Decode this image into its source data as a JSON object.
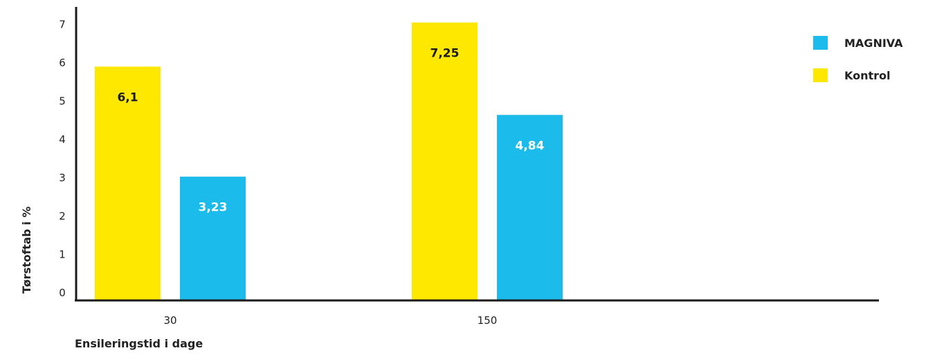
{
  "chart_data": {
    "type": "bar",
    "categories": [
      "30",
      "150"
    ],
    "series": [
      {
        "name": "Kontrol",
        "values": [
          6.1,
          7.25
        ],
        "labels": [
          "6,1",
          "7,25"
        ],
        "color": "#FFE800",
        "label_color": "#1a1a1a"
      },
      {
        "name": "MAGNIVA",
        "values": [
          3.23,
          4.84
        ],
        "labels": [
          "3,23",
          "4,84"
        ],
        "color": "#1BBBEC",
        "label_color": "#ffffff"
      }
    ],
    "legend": [
      {
        "name": "MAGNIVA",
        "color": "#1BBBEC"
      },
      {
        "name": "Kontrol",
        "color": "#FFE800"
      }
    ],
    "legend_position": "top-right",
    "xlabel": "Ensileringstid i dage",
    "ylabel": "Tørstoftab i %",
    "ylim": [
      0,
      7
    ],
    "yticks": [
      "0",
      "1",
      "2",
      "3",
      "4",
      "5",
      "6",
      "7"
    ],
    "grid": false
  }
}
